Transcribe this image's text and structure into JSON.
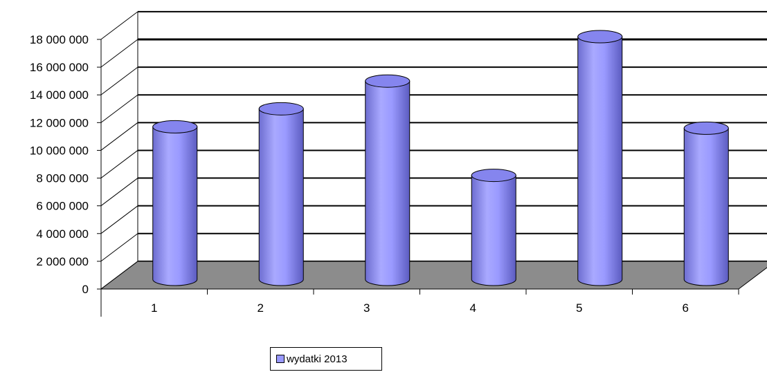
{
  "chart_data": {
    "type": "bar",
    "style": "3d-cylinder",
    "categories": [
      "1",
      "2",
      "3",
      "4",
      "5",
      "6"
    ],
    "series": [
      {
        "name": "wydatki 2013",
        "values": [
          11000000,
          12300000,
          14300000,
          7500000,
          17500000,
          10900000
        ]
      }
    ],
    "ylim": [
      0,
      18000000
    ],
    "yticks": [
      "0",
      "2 000 000",
      "4 000 000",
      "6 000 000",
      "8 000 000",
      "10 000 000",
      "12 000 000",
      "14 000 000",
      "16 000 000",
      "18 000 000"
    ],
    "grid": true,
    "legend_position": "bottom",
    "colors": {
      "bar": "#9999ff",
      "floor": "#8c8c8c"
    }
  }
}
